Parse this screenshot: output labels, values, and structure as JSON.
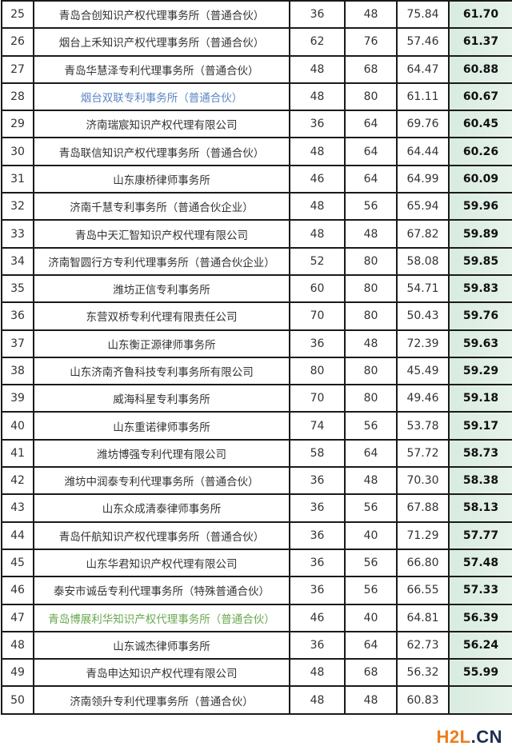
{
  "highlight_colors": {
    "blue": "#5b86c5",
    "green": "#6aa84f",
    "score_bg": "#d9ece0"
  },
  "rows": [
    {
      "rank": "25",
      "name": "青岛合创知识产权代理事务所（普通合伙）",
      "c1": "36",
      "c2": "48",
      "c3": "75.84",
      "score": "61.70"
    },
    {
      "rank": "26",
      "name": "烟台上禾知识产权代理事务所（普通合伙）",
      "c1": "62",
      "c2": "76",
      "c3": "57.46",
      "score": "61.37"
    },
    {
      "rank": "27",
      "name": "青岛华慧泽专利代理事务所（普通合伙）",
      "c1": "48",
      "c2": "68",
      "c3": "64.47",
      "score": "60.88"
    },
    {
      "rank": "28",
      "name": "烟台双联专利事务所（普通合伙）",
      "c1": "48",
      "c2": "80",
      "c3": "61.11",
      "score": "60.67",
      "style": "blue"
    },
    {
      "rank": "29",
      "name": "济南瑞宸知识产权代理有限公司",
      "c1": "36",
      "c2": "64",
      "c3": "69.76",
      "score": "60.45"
    },
    {
      "rank": "30",
      "name": "青岛联信知识产权代理事务所（普通合伙）",
      "c1": "48",
      "c2": "64",
      "c3": "64.44",
      "score": "60.26"
    },
    {
      "rank": "31",
      "name": "山东康桥律师事务所",
      "c1": "46",
      "c2": "64",
      "c3": "64.99",
      "score": "60.09"
    },
    {
      "rank": "32",
      "name": "济南千慧专利事务所（普通合伙企业）",
      "c1": "48",
      "c2": "56",
      "c3": "65.94",
      "score": "59.96"
    },
    {
      "rank": "33",
      "name": "青岛中天汇智知识产权代理有限公司",
      "c1": "48",
      "c2": "48",
      "c3": "67.82",
      "score": "59.89"
    },
    {
      "rank": "34",
      "name": "济南智圆行方专利代理事务所（普通合伙企业）",
      "c1": "52",
      "c2": "80",
      "c3": "58.08",
      "score": "59.85"
    },
    {
      "rank": "35",
      "name": "潍坊正信专利事务所",
      "c1": "60",
      "c2": "80",
      "c3": "54.71",
      "score": "59.83"
    },
    {
      "rank": "36",
      "name": "东营双桥专利代理有限责任公司",
      "c1": "70",
      "c2": "80",
      "c3": "50.43",
      "score": "59.76"
    },
    {
      "rank": "37",
      "name": "山东衡正源律师事务所",
      "c1": "36",
      "c2": "48",
      "c3": "72.39",
      "score": "59.63"
    },
    {
      "rank": "38",
      "name": "山东济南齐鲁科技专利事务所有限公司",
      "c1": "80",
      "c2": "80",
      "c3": "45.49",
      "score": "59.29"
    },
    {
      "rank": "39",
      "name": "威海科星专利事务所",
      "c1": "70",
      "c2": "80",
      "c3": "49.46",
      "score": "59.18"
    },
    {
      "rank": "40",
      "name": "山东重诺律师事务所",
      "c1": "74",
      "c2": "56",
      "c3": "53.78",
      "score": "59.17"
    },
    {
      "rank": "41",
      "name": "潍坊博强专利代理有限公司",
      "c1": "58",
      "c2": "64",
      "c3": "57.72",
      "score": "58.73"
    },
    {
      "rank": "42",
      "name": "潍坊中润泰专利代理事务所（普通合伙）",
      "c1": "36",
      "c2": "48",
      "c3": "70.30",
      "score": "58.38"
    },
    {
      "rank": "43",
      "name": "山东众成清泰律师事务所",
      "c1": "36",
      "c2": "56",
      "c3": "67.88",
      "score": "58.13"
    },
    {
      "rank": "44",
      "name": "青岛仟航知识产权代理事务所（普通合伙）",
      "c1": "36",
      "c2": "40",
      "c3": "71.29",
      "score": "57.77"
    },
    {
      "rank": "45",
      "name": "山东华君知识产权代理有限公司",
      "c1": "36",
      "c2": "56",
      "c3": "66.80",
      "score": "57.48"
    },
    {
      "rank": "46",
      "name": "泰安市诚岳专利代理事务所（特殊普通合伙）",
      "c1": "36",
      "c2": "56",
      "c3": "66.55",
      "score": "57.33"
    },
    {
      "rank": "47",
      "name": "青岛博展利华知识产权代理事务所（普通合伙）",
      "c1": "46",
      "c2": "40",
      "c3": "64.81",
      "score": "56.39",
      "style": "green"
    },
    {
      "rank": "48",
      "name": "山东诚杰律师事务所",
      "c1": "36",
      "c2": "64",
      "c3": "62.73",
      "score": "56.24"
    },
    {
      "rank": "49",
      "name": "青岛申达知识产权代理有限公司",
      "c1": "48",
      "c2": "68",
      "c3": "56.32",
      "score": "55.99"
    },
    {
      "rank": "50",
      "name": "济南领升专利代理事务所（普通合伙）",
      "c1": "48",
      "c2": "48",
      "c3": "60.83",
      "score": ""
    }
  ],
  "logo": {
    "part1": "H2L",
    "part2": ".CN"
  }
}
